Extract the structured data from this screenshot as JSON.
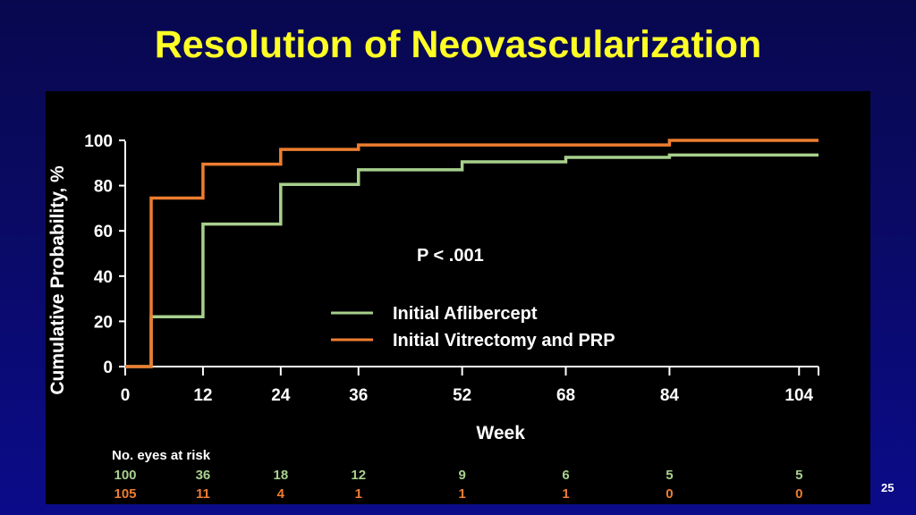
{
  "slide": {
    "title": "Resolution of Neovascularization",
    "page_number": "25"
  },
  "colors": {
    "title": "#ffff26",
    "background": "#0a0a66",
    "panel": "#000000",
    "aflibercept": "#a8d08d",
    "vitrectomy": "#ed7d31"
  },
  "chart_data": {
    "type": "line",
    "step": true,
    "title": "",
    "xlabel": "Week",
    "ylabel": "Cumulative Probability, %",
    "xlim": [
      0,
      107
    ],
    "ylim": [
      0,
      100
    ],
    "xticks": [
      0,
      12,
      24,
      36,
      52,
      68,
      84,
      104
    ],
    "yticks": [
      0,
      20,
      40,
      60,
      80,
      100
    ],
    "annotation": "P < .001",
    "legend_position": "center-right",
    "series": [
      {
        "name": "Initial Aflibercept",
        "color": "#a8d08d",
        "points": [
          [
            0,
            0
          ],
          [
            4,
            0
          ],
          [
            4,
            22
          ],
          [
            12,
            22
          ],
          [
            12,
            63
          ],
          [
            24,
            63
          ],
          [
            24,
            80.5
          ],
          [
            36,
            80.5
          ],
          [
            36,
            87
          ],
          [
            52,
            87
          ],
          [
            52,
            90.5
          ],
          [
            68,
            90.5
          ],
          [
            68,
            92.5
          ],
          [
            84,
            92.5
          ],
          [
            84,
            93.5
          ],
          [
            107,
            93.5
          ]
        ]
      },
      {
        "name": "Initial Vitrectomy and PRP",
        "color": "#ed7d31",
        "points": [
          [
            0,
            0
          ],
          [
            4,
            0
          ],
          [
            4,
            74.5
          ],
          [
            12,
            74.5
          ],
          [
            12,
            89.5
          ],
          [
            24,
            89.5
          ],
          [
            24,
            96
          ],
          [
            36,
            96
          ],
          [
            36,
            98
          ],
          [
            84,
            98
          ],
          [
            84,
            100
          ],
          [
            107,
            100
          ]
        ]
      }
    ],
    "at_risk": {
      "title": "No. eyes at risk",
      "weeks": [
        0,
        12,
        24,
        36,
        52,
        68,
        84,
        104
      ],
      "rows": [
        {
          "series": "Initial Aflibercept",
          "color": "#a8d08d",
          "values": [
            "100",
            "36",
            "18",
            "12",
            "9",
            "6",
            "5",
            "5"
          ]
        },
        {
          "series": "Initial Vitrectomy and PRP",
          "color": "#ed7d31",
          "values": [
            "105",
            "11",
            "4",
            "1",
            "1",
            "1",
            "0",
            "0"
          ]
        }
      ]
    }
  }
}
